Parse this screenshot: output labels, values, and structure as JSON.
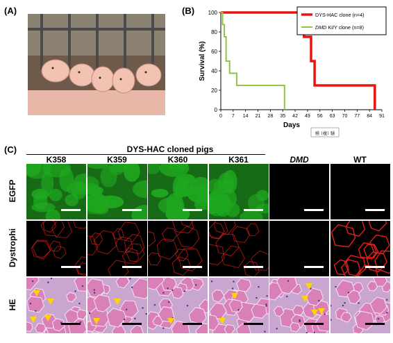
{
  "panels": {
    "a": "(A)",
    "b": "(B)",
    "c": "(C)"
  },
  "chart_data": {
    "type": "line",
    "title": "",
    "xlabel": "Days",
    "ylabel": "Survival (%)",
    "xlim": [
      0,
      91
    ],
    "ylim": [
      0,
      100
    ],
    "xticks": [
      0,
      7,
      14,
      21,
      28,
      35,
      42,
      49,
      56,
      63,
      70,
      77,
      84,
      91
    ],
    "yticks": [
      0,
      20,
      40,
      60,
      80,
      100
    ],
    "legend_position": "top-right",
    "series": [
      {
        "name": "DYS-HAC clone (n=4)",
        "color": "#e8140f",
        "step": true,
        "x": [
          0,
          47,
          47,
          51,
          51,
          53,
          53,
          87,
          87
        ],
        "y": [
          100,
          100,
          75,
          75,
          50,
          50,
          25,
          25,
          0
        ]
      },
      {
        "name": "DMD KI/Y clone (n=8)",
        "color": "#8cc63f",
        "step": true,
        "x": [
          0,
          1,
          1,
          2,
          2,
          3,
          3,
          5,
          5,
          9,
          9,
          36,
          36
        ],
        "y": [
          100,
          100,
          87.5,
          87.5,
          75,
          75,
          50,
          50,
          37.5,
          37.5,
          25,
          25,
          0
        ]
      }
    ]
  },
  "legend": {
    "dys": "DYS-HAC clone (n=4)",
    "dmd_italic": "DMD",
    "dmd_rest": " KI/Y clone (n=8)"
  },
  "stamp": "検 (複) 験",
  "grid": {
    "group_header": "DYS-HAC cloned pigs",
    "columns": [
      "K358",
      "K359",
      "K360",
      "K361",
      "DMD",
      "WT"
    ],
    "rows": [
      "EGFP",
      "Dystrophi",
      "HE"
    ]
  },
  "colors": {
    "egfp": "#1fa81f",
    "dystro": "#e0201a",
    "he": "#d980b8",
    "scale_white": "#ffffff",
    "scale_black": "#000000",
    "arrow": "#ffd400"
  }
}
